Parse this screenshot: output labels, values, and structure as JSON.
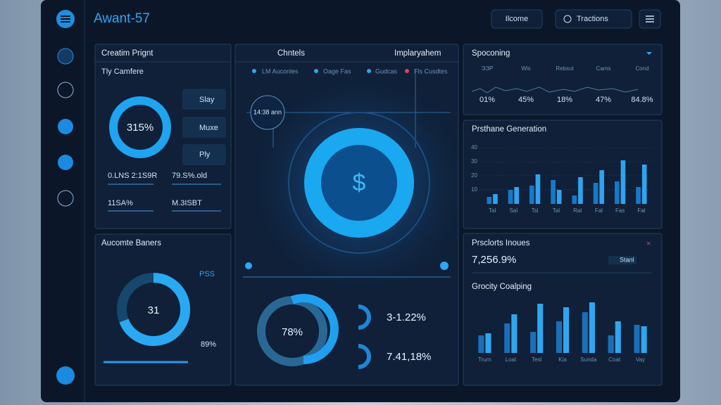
{
  "header": {
    "title": "Awant-57",
    "buttons": [
      "Ilcome",
      "Tractions"
    ]
  },
  "creation_panel": {
    "title": "Creatim Prignt",
    "subtitle": "Tly Camfere",
    "donut_label": "315%",
    "options": [
      "Slay",
      "Muxe",
      "Ply"
    ],
    "stats": [
      "0.LNS 2:1S9R",
      "79.S%.old",
      "11SA%",
      "M.3ISBT"
    ]
  },
  "audience_panel": {
    "title": "Aucomte Baners",
    "donut_label": "31",
    "side_label": "PSS",
    "percent": "89%"
  },
  "center_panel": {
    "tabs": [
      "Chntels",
      "Implaryahem"
    ],
    "legend": [
      "LM Auconles",
      "Oage Fas",
      "Gudcas",
      "Fls Cusdtes"
    ],
    "clock": "14:38 ann",
    "symbol": "$",
    "donut_label": "78%",
    "stats": [
      "3-1.22%",
      "7.41,18%"
    ]
  },
  "spending_panel": {
    "title": "Spoconing",
    "columns": [
      "ЭЭP",
      "Wis",
      "Rebsut",
      "Cams",
      "Cond"
    ],
    "values": [
      "01%",
      "45%",
      "18%",
      "47%",
      "84.8%"
    ]
  },
  "generation_chart": {
    "type": "bar",
    "title": "Prsthane Generation",
    "categories": [
      "Tal",
      "Sal",
      "Tsl",
      "Tal",
      "Ral",
      "Fal",
      "Fas",
      "Fal"
    ],
    "ylim": [
      0,
      45
    ],
    "yticks": [
      10,
      20,
      30,
      40
    ],
    "series": [
      {
        "color": "#1778c8",
        "values": [
          5,
          10,
          13,
          17,
          6,
          15,
          16,
          12
        ]
      },
      {
        "color": "#2fa3ee",
        "values": [
          7,
          12,
          21,
          10,
          19,
          24,
          31,
          28
        ]
      }
    ]
  },
  "products_panel": {
    "title": "Prsclorts Inoues",
    "value": "7,256.9%",
    "badge": "Stanl"
  },
  "growth_chart": {
    "type": "bar",
    "title": "Grocity Coalping",
    "categories": [
      "Trurn",
      "Loal",
      "Tesl",
      "Kia",
      "Sunda",
      "Coat",
      "Vay"
    ],
    "ylim": [
      0,
      80
    ],
    "series": [
      {
        "color": "#1a6fb8",
        "values": [
          25,
          42,
          30,
          45,
          58,
          25,
          40
        ]
      },
      {
        "color": "#2ea6f0",
        "values": [
          28,
          55,
          70,
          65,
          72,
          45,
          38
        ]
      }
    ]
  }
}
